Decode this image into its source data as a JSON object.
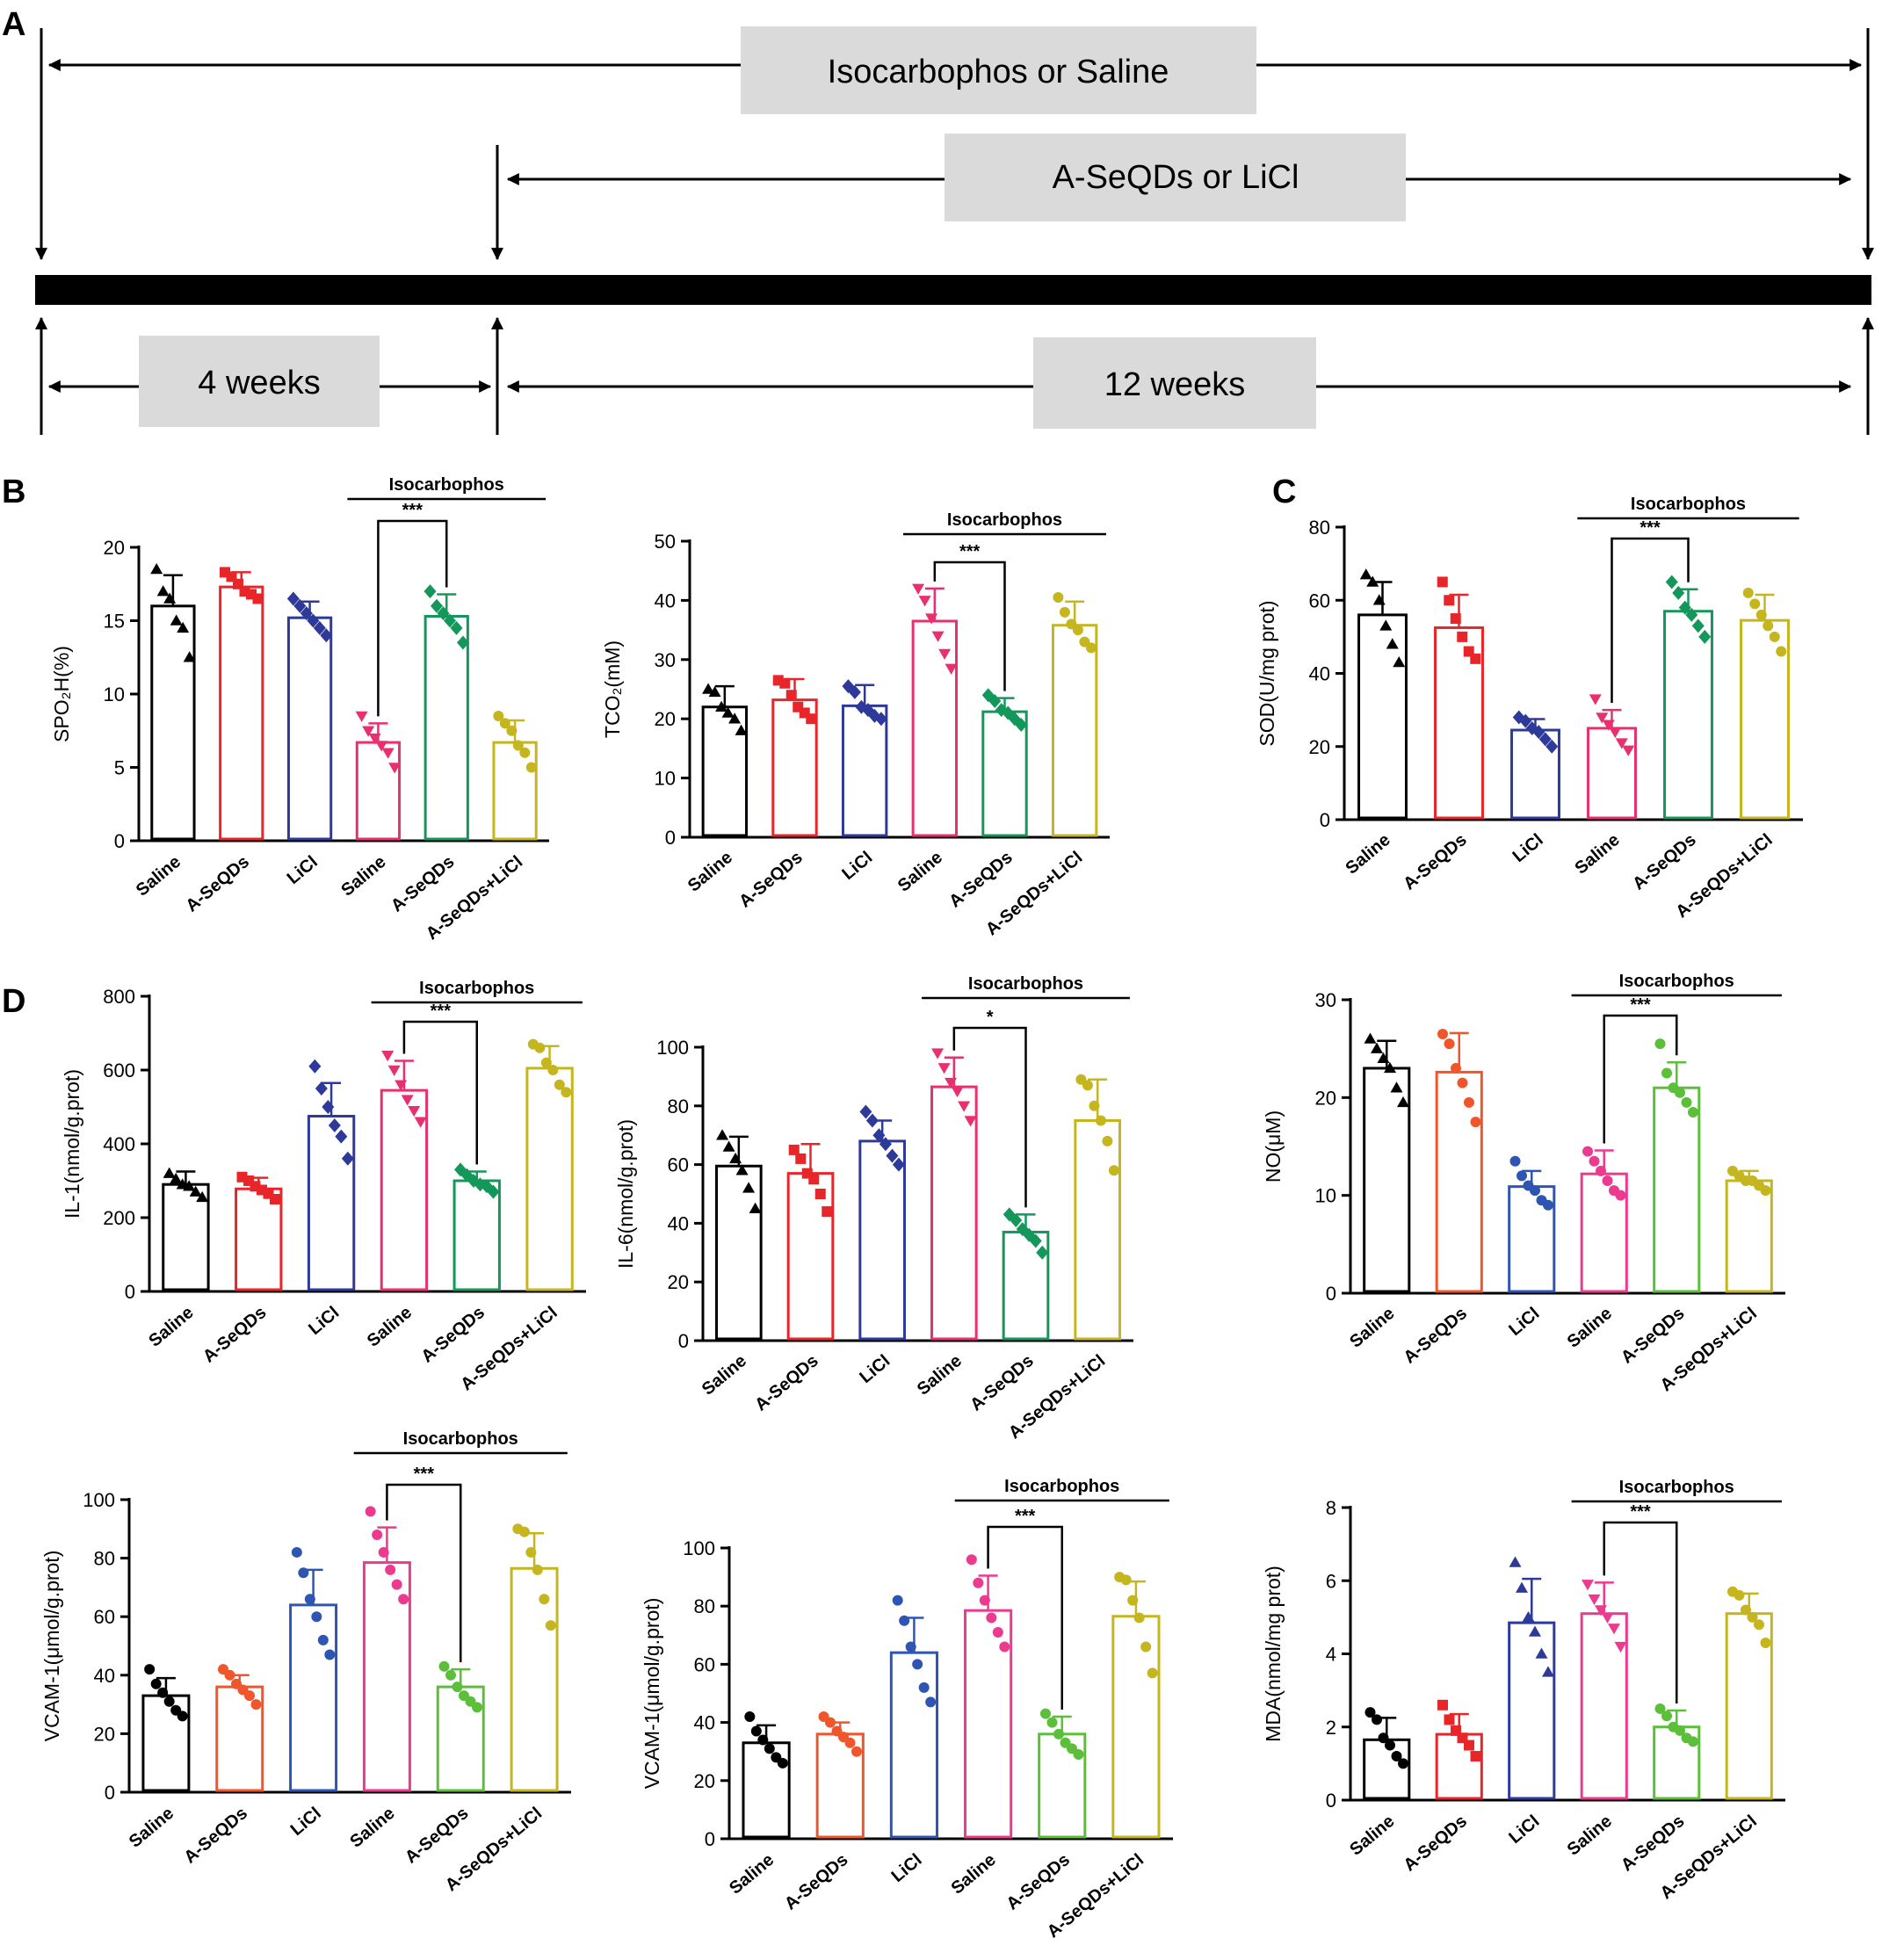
{
  "panel_letters": {
    "a": "A",
    "b": "B",
    "c": "C",
    "d": "D"
  },
  "timeline": {
    "label_top": "Isocarbophos or Saline",
    "label_mid": "A-SeQDs or LiCl",
    "label_left": "4 weeks",
    "label_right": "12 weeks"
  },
  "colors": {
    "saline": "#000000",
    "aseqds": "#e8262a",
    "licl": "#2d3a9a",
    "iso_saline": "#e8306e",
    "iso_aseqds": "#13975a",
    "iso_combo": "#c5b51e",
    "aseqds_alt": "#f0562b",
    "licl_alt": "#2f55b3",
    "iso_saline_alt": "#ec3a8f",
    "iso_aseqds_alt": "#5bbf3a"
  },
  "chart_data": [
    {
      "id": "spo2h",
      "type": "bar",
      "categories": [
        "Saline",
        "A-SeQDs",
        "LiCl",
        "Saline",
        "A-SeQDs",
        "A-SeQDs+LiCl"
      ],
      "values": [
        16,
        17.3,
        15.2,
        6.7,
        15.3,
        6.7
      ],
      "errors": [
        2.1,
        1.0,
        1.1,
        1.3,
        1.5,
        1.5
      ],
      "points": [
        [
          18.5,
          17,
          16.5,
          15,
          14.5,
          12.5
        ],
        [
          18.3,
          18,
          17.5,
          17,
          16.8,
          16.5
        ],
        [
          16.5,
          16,
          15.5,
          15,
          14.5,
          14
        ],
        [
          8.5,
          7.5,
          7,
          6.5,
          6,
          5
        ],
        [
          17,
          16,
          15.5,
          15,
          14.5,
          13.5
        ],
        [
          8.5,
          8,
          7.5,
          6.5,
          6,
          5
        ]
      ],
      "ylabel": "SPO₂H(%)",
      "ylim": [
        0,
        20
      ],
      "yticks": [
        0,
        5,
        10,
        15,
        20
      ],
      "group_label": "Isocarbophos",
      "sig": "***",
      "sig_from": 3,
      "sig_to": 4
    },
    {
      "id": "tco2",
      "type": "bar",
      "categories": [
        "Saline",
        "A-SeQDs",
        "LiCl",
        "Saline",
        "A-SeQDs",
        "A-SeQDs+LiCl"
      ],
      "values": [
        22,
        23.2,
        22.2,
        36.5,
        21.2,
        35.8
      ],
      "errors": [
        3.5,
        3.5,
        3.5,
        5.5,
        2.3,
        4.0
      ],
      "points": [
        [
          25,
          24.5,
          22,
          21,
          20,
          18
        ],
        [
          26.5,
          26,
          24,
          22,
          21,
          20
        ],
        [
          25.5,
          24.5,
          22,
          21.5,
          20.5,
          20
        ],
        [
          42,
          40,
          37,
          34,
          31,
          28.5
        ],
        [
          24,
          23,
          21.5,
          21,
          20,
          19
        ],
        [
          40.5,
          38,
          36,
          35,
          33,
          32
        ]
      ],
      "ylabel": "TCO₂(mM)",
      "ylim": [
        0,
        50
      ],
      "yticks": [
        0,
        10,
        20,
        30,
        40,
        50
      ],
      "group_label": "Isocarbophos",
      "sig": "***",
      "sig_from": 3,
      "sig_to": 4
    },
    {
      "id": "sod",
      "type": "bar",
      "categories": [
        "Saline",
        "A-SeQDs",
        "LiCl",
        "Saline",
        "A-SeQDs",
        "A-SeQDs+LiCl"
      ],
      "values": [
        56,
        52.5,
        24.5,
        25,
        57,
        54.5
      ],
      "errors": [
        9,
        9,
        3,
        5,
        6,
        7
      ],
      "points": [
        [
          67,
          65,
          60,
          53,
          48,
          43
        ],
        [
          65,
          60,
          55,
          50,
          46,
          44
        ],
        [
          28,
          27,
          25,
          24,
          22,
          20
        ],
        [
          33,
          28,
          26,
          24,
          21,
          19
        ],
        [
          65,
          62,
          58,
          56,
          53,
          50
        ],
        [
          62,
          59,
          56,
          53,
          50,
          46
        ]
      ],
      "ylabel": "SOD(U/mg prot)",
      "ylim": [
        0,
        80
      ],
      "yticks": [
        0,
        20,
        40,
        60,
        80
      ],
      "group_label": "Isocarbophos",
      "sig": "***",
      "sig_from": 3,
      "sig_to": 4
    },
    {
      "id": "il1",
      "type": "bar",
      "categories": [
        "Saline",
        "A-SeQDs",
        "LiCl",
        "Saline",
        "A-SeQDs",
        "A-SeQDs+LiCl"
      ],
      "values": [
        290,
        278,
        475,
        545,
        300,
        605
      ],
      "errors": [
        35,
        30,
        90,
        80,
        25,
        60
      ],
      "points": [
        [
          320,
          305,
          290,
          285,
          270,
          255
        ],
        [
          310,
          300,
          285,
          275,
          265,
          250
        ],
        [
          610,
          550,
          500,
          450,
          420,
          360
        ],
        [
          640,
          600,
          560,
          520,
          490,
          460
        ],
        [
          330,
          315,
          300,
          290,
          285,
          270
        ],
        [
          670,
          660,
          620,
          600,
          560,
          540
        ]
      ],
      "ylabel": "IL-1(nmol/g.prot)",
      "ylim": [
        0,
        800
      ],
      "yticks": [
        0,
        200,
        400,
        600,
        800
      ],
      "group_label": "Isocarbophos",
      "sig": "***",
      "sig_from": 3,
      "sig_to": 4
    },
    {
      "id": "il6",
      "type": "bar",
      "categories": [
        "Saline",
        "A-SeQDs",
        "LiCl",
        "Saline",
        "A-SeQDs",
        "A-SeQDs+LiCl"
      ],
      "values": [
        59.5,
        57,
        68,
        86.5,
        37,
        75
      ],
      "errors": [
        10,
        10,
        7,
        10,
        6,
        14
      ],
      "points": [
        [
          70,
          66,
          62,
          58,
          52,
          45
        ],
        [
          65,
          62,
          57,
          55,
          50,
          44
        ],
        [
          78,
          75,
          70,
          67,
          63,
          60
        ],
        [
          98,
          93,
          88,
          85,
          80,
          75
        ],
        [
          43,
          41,
          38,
          36,
          34,
          30
        ],
        [
          89,
          87,
          80,
          75,
          68,
          58
        ]
      ],
      "ylabel": "IL-6(nmol/g.prot)",
      "ylim": [
        0,
        100
      ],
      "yticks": [
        0,
        20,
        40,
        60,
        80,
        100
      ],
      "group_label": "Isocarbophos",
      "sig": "*",
      "sig_from": 3,
      "sig_to": 4
    },
    {
      "id": "no",
      "type": "bar",
      "categories": [
        "Saline",
        "A-SeQDs",
        "LiCl",
        "Saline",
        "A-SeQDs",
        "A-SeQDs+LiCl"
      ],
      "values": [
        23,
        22.6,
        10.9,
        12.2,
        21,
        11.5
      ],
      "errors": [
        2.8,
        4.0,
        1.6,
        2.4,
        2.6,
        1.0
      ],
      "points": [
        [
          26,
          25,
          24,
          23,
          21,
          19.5
        ],
        [
          26.5,
          25.5,
          23,
          21.5,
          19.5,
          17.5
        ],
        [
          13.5,
          12,
          11,
          10.5,
          9.5,
          9
        ],
        [
          14.5,
          13.5,
          12.5,
          11.5,
          10.5,
          10
        ],
        [
          25.5,
          22.5,
          21,
          20.5,
          19.5,
          18.5
        ],
        [
          12.5,
          12,
          11.5,
          11.5,
          11,
          10.5
        ]
      ],
      "ylabel": "NO(μM)",
      "ylim": [
        0,
        30
      ],
      "yticks": [
        0,
        10,
        20,
        30
      ],
      "group_label": "Isocarbophos",
      "sig": "***",
      "sig_from": 3,
      "sig_to": 4
    },
    {
      "id": "vcam_a",
      "type": "bar",
      "categories": [
        "Saline",
        "A-SeQDs",
        "LiCl",
        "Saline",
        "A-SeQDs",
        "A-SeQDs+LiCl"
      ],
      "values": [
        33,
        36,
        64,
        78.5,
        36,
        76.5
      ],
      "errors": [
        6,
        4,
        12,
        12,
        6,
        12
      ],
      "points": [
        [
          42,
          37,
          34,
          31,
          28,
          26
        ],
        [
          42,
          40,
          37,
          35,
          33,
          30
        ],
        [
          82,
          75,
          66,
          60,
          52,
          47
        ],
        [
          96,
          88,
          82,
          76,
          71,
          66
        ],
        [
          43,
          40,
          36,
          33,
          31,
          29
        ],
        [
          90,
          89,
          82,
          76,
          66,
          57
        ]
      ],
      "ylabel": "VCAM-1(μmol/g.prot)",
      "ylim": [
        0,
        100
      ],
      "yticks": [
        0,
        20,
        40,
        60,
        80,
        100
      ],
      "group_label": "Isocarbophos",
      "sig": "***",
      "sig_from": 3,
      "sig_to": 4
    },
    {
      "id": "vcam_b",
      "type": "bar",
      "categories": [
        "Saline",
        "A-SeQDs",
        "LiCl",
        "Saline",
        "A-SeQDs",
        "A-SeQDs+LiCl"
      ],
      "values": [
        33,
        36,
        64,
        78.5,
        36,
        76.5
      ],
      "errors": [
        6,
        4,
        12,
        12,
        6,
        12
      ],
      "points": [
        [
          42,
          37,
          34,
          31,
          28,
          26
        ],
        [
          42,
          40,
          37,
          35,
          33,
          30
        ],
        [
          82,
          75,
          66,
          60,
          52,
          47
        ],
        [
          96,
          88,
          82,
          76,
          71,
          66
        ],
        [
          43,
          40,
          36,
          33,
          31,
          29
        ],
        [
          90,
          89,
          82,
          76,
          66,
          57
        ]
      ],
      "ylabel": "VCAM-1(μmol/g.prot)",
      "ylim": [
        0,
        100
      ],
      "yticks": [
        0,
        20,
        40,
        60,
        80,
        100
      ],
      "group_label": "Isocarbophos",
      "sig": "***",
      "sig_from": 3,
      "sig_to": 4
    },
    {
      "id": "mda",
      "type": "bar",
      "categories": [
        "Saline",
        "A-SeQDs",
        "LiCl",
        "Saline",
        "A-SeQDs",
        "A-SeQDs+LiCl"
      ],
      "values": [
        1.65,
        1.8,
        4.85,
        5.1,
        2.0,
        5.1
      ],
      "errors": [
        0.6,
        0.55,
        1.2,
        0.85,
        0.45,
        0.55
      ],
      "points": [
        [
          2.4,
          2.2,
          1.7,
          1.5,
          1.2,
          1.0
        ],
        [
          2.6,
          2.2,
          1.9,
          1.7,
          1.5,
          1.2
        ],
        [
          6.5,
          5.8,
          5.0,
          4.6,
          4.0,
          3.5
        ],
        [
          5.9,
          5.5,
          5.2,
          5.0,
          4.7,
          4.2
        ],
        [
          2.5,
          2.3,
          2.0,
          1.9,
          1.7,
          1.6
        ],
        [
          5.7,
          5.6,
          5.2,
          5.0,
          4.8,
          4.3
        ]
      ],
      "ylabel": "MDA(nmol/mg prot)",
      "ylim": [
        0,
        8
      ],
      "yticks": [
        0,
        2,
        4,
        6,
        8
      ],
      "group_label": "Isocarbophos",
      "sig": "***",
      "sig_from": 3,
      "sig_to": 4
    }
  ]
}
